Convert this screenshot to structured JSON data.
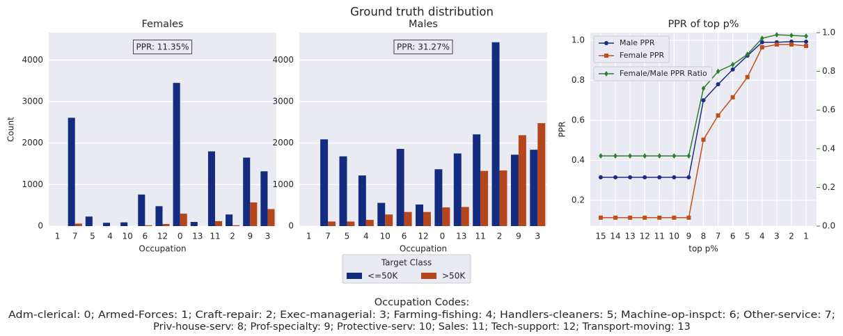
{
  "title": "Ground truth distribution",
  "chart_data": [
    {
      "type": "bar",
      "title": "Females",
      "xlabel": "Occupation",
      "ylabel": "Count",
      "annotation": "PPR: 11.35%",
      "categories": [
        "1",
        "7",
        "5",
        "4",
        "10",
        "6",
        "12",
        "0",
        "13",
        "11",
        "2",
        "9",
        "3"
      ],
      "series": [
        {
          "name": "<=50K",
          "color": "#142c80",
          "values": [
            0,
            2610,
            230,
            80,
            90,
            760,
            480,
            3450,
            100,
            1800,
            280,
            1650,
            1320
          ]
        },
        {
          "name": ">50K",
          "color": "#b5451b",
          "values": [
            0,
            60,
            0,
            0,
            0,
            20,
            50,
            300,
            0,
            120,
            20,
            570,
            410
          ]
        }
      ],
      "ylim": [
        0,
        4660
      ],
      "yticks": [
        0,
        1000,
        2000,
        3000,
        4000
      ],
      "grid": true
    },
    {
      "type": "bar",
      "title": "Males",
      "xlabel": "Occupation",
      "annotation": "PPR: 31.27%",
      "categories": [
        "1",
        "7",
        "5",
        "4",
        "10",
        "6",
        "12",
        "0",
        "13",
        "11",
        "2",
        "9",
        "3"
      ],
      "series": [
        {
          "name": "<=50K",
          "color": "#142c80",
          "values": [
            0,
            2090,
            1680,
            1220,
            560,
            1860,
            520,
            1370,
            1750,
            2210,
            4430,
            1720,
            1840
          ]
        },
        {
          "name": ">50K",
          "color": "#b5451b",
          "values": [
            0,
            110,
            110,
            150,
            280,
            340,
            340,
            450,
            460,
            1330,
            1340,
            2190,
            2480
          ]
        }
      ],
      "ylim": [
        0,
        4660
      ],
      "yticks": [
        0,
        1000,
        2000,
        3000,
        4000
      ],
      "grid": true
    },
    {
      "type": "line",
      "title": "PPR of top p%",
      "xlabel": "top p%",
      "ylabel": "PPR",
      "categories": [
        "15",
        "14",
        "13",
        "12",
        "11",
        "10",
        "9",
        "8",
        "7",
        "6",
        "5",
        "4",
        "3",
        "2",
        "1"
      ],
      "series": [
        {
          "name": "Male PPR",
          "color": "#1b2c87",
          "marker": "circle",
          "values": [
            0.315,
            0.315,
            0.315,
            0.315,
            0.315,
            0.315,
            0.315,
            0.7,
            0.78,
            0.854,
            0.923,
            0.99,
            0.99,
            0.993,
            0.993
          ]
        },
        {
          "name": "Female PPR",
          "color": "#c0501a",
          "marker": "square",
          "values": [
            0.113,
            0.113,
            0.113,
            0.113,
            0.113,
            0.113,
            0.113,
            0.503,
            0.624,
            0.715,
            0.816,
            0.965,
            0.979,
            0.979,
            0.972
          ]
        },
        {
          "name": "Female/Male PPR Ratio",
          "color": "#2f7d2f",
          "marker": "diamond",
          "axis": "y2",
          "values": [
            0.363,
            0.363,
            0.363,
            0.363,
            0.363,
            0.363,
            0.363,
            0.712,
            0.8,
            0.835,
            0.888,
            0.971,
            0.989,
            0.986,
            0.982
          ]
        }
      ],
      "ylim": [
        0.071,
        1.038
      ],
      "yticks": [
        0.2,
        0.4,
        0.6,
        0.8,
        {
          "value": 1.0,
          "label": "1.0"
        }
      ],
      "y2lim": [
        0,
        1
      ],
      "y2ticks": [
        {
          "value": 0,
          "label": "0.0"
        },
        0.2,
        0.4,
        0.6,
        0.8,
        {
          "value": 1,
          "label": "1.0"
        }
      ],
      "grid": true
    }
  ],
  "legend": {
    "title": "Target Class"
  },
  "footnote": {
    "title": "Occupation Codes:",
    "lines": [
      "Adm-clerical: 0; Armed-Forces: 1; Craft-repair: 2; Exec-managerial: 3; Farming-fishing: 4; Handlers-cleaners: 5; Machine-op-inspct: 6; Other-service: 7;",
      "Priv-house-serv: 8; Prof-specialty: 9; Protective-serv: 10; Sales: 11; Tech-support: 12; Transport-moving: 13"
    ]
  }
}
